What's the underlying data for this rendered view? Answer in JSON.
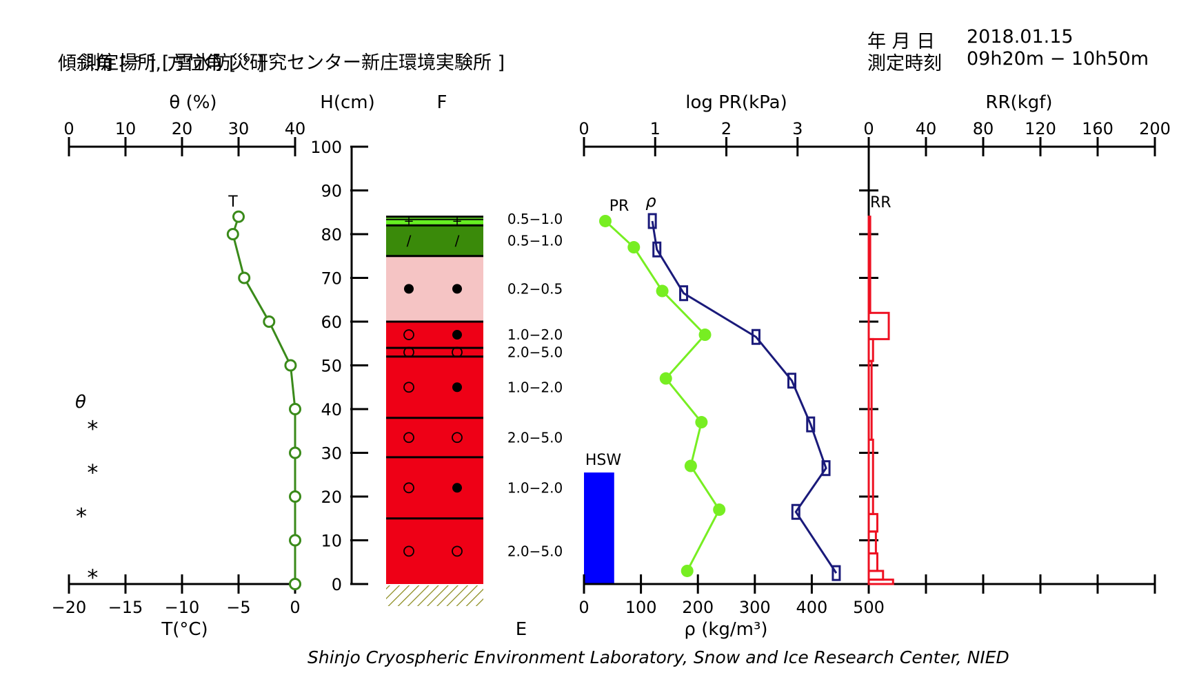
{
  "header": {
    "location_label": "測定場所",
    "location_name": "雪氷防災研究センター新庄環境実験所",
    "angles_label": "傾斜角 [ ° ], 方位角 [ ° ]",
    "date_label": "年 月 日",
    "date_value": "2018.01.15",
    "time_label": "測定時刻",
    "time_value": "09h20m − 10h50m"
  },
  "footer": "Shinjo Cryospheric Environment Laboratory, Snow and Ice Research Center, NIED",
  "chart_data": {
    "type": "snow-pit-profile",
    "height_axis": {
      "label": "H(cm)",
      "range": [
        0,
        100
      ],
      "ticks": [
        0,
        10,
        20,
        30,
        40,
        50,
        60,
        70,
        80,
        90,
        100
      ]
    },
    "labels": {
      "F": "F",
      "E": "E",
      "HSW": "HSW",
      "T_series": "T",
      "PR_series": "PR",
      "rho_series": "ρ",
      "RR_series": "RR",
      "theta_marker": "θ"
    },
    "temperature": {
      "axis_label": "T(°C)",
      "range": [
        -20,
        0
      ],
      "ticks": [
        "−20",
        "−15",
        "−10",
        "−5",
        "0"
      ],
      "color": "#3a8a1a",
      "points": [
        {
          "h": 84,
          "t": -5.0
        },
        {
          "h": 80,
          "t": -5.5
        },
        {
          "h": 70,
          "t": -4.5
        },
        {
          "h": 60,
          "t": -2.3
        },
        {
          "h": 50,
          "t": -0.4
        },
        {
          "h": 40,
          "t": 0.0
        },
        {
          "h": 30,
          "t": 0.0
        },
        {
          "h": 20,
          "t": 0.0
        },
        {
          "h": 10,
          "t": 0.0
        },
        {
          "h": 0,
          "t": 0.0
        }
      ]
    },
    "water_content": {
      "axis_label": "θ (%)",
      "range": [
        0,
        40
      ],
      "ticks": [
        "0",
        "10",
        "20",
        "30",
        "40"
      ],
      "marker": "*",
      "points": [
        {
          "h": 36,
          "v": 2
        },
        {
          "h": 26,
          "v": 2
        },
        {
          "h": 16,
          "v": 0
        },
        {
          "h": 2,
          "v": 2
        }
      ]
    },
    "snow_layers": [
      {
        "bottom": 82,
        "top": 84,
        "color": "#66ee22",
        "grain": "+",
        "grain2": "+",
        "size": "0.5−1.0",
        "size_h": 83.5
      },
      {
        "bottom": 75,
        "top": 82,
        "color": "#3a8a0a",
        "grain": "/",
        "grain2": "/",
        "size": "0.5−1.0",
        "size_h": 78.5
      },
      {
        "bottom": 60,
        "top": 75,
        "color": "#f5c4c4",
        "grain": "●",
        "grain2": "●",
        "size": "0.2−0.5",
        "size_h": 67.5
      },
      {
        "bottom": 54,
        "top": 60,
        "color": "#ee0016",
        "grain": "○",
        "grain2": "●",
        "size": "1.0−2.0",
        "size_h": 57
      },
      {
        "bottom": 52,
        "top": 54,
        "color": "#ee0016",
        "grain": "○",
        "grain2": "○",
        "size": "2.0−5.0",
        "size_h": 53
      },
      {
        "bottom": 38,
        "top": 52,
        "color": "#ee0016",
        "grain": "○",
        "grain2": "●",
        "size": "1.0−2.0",
        "size_h": 45
      },
      {
        "bottom": 29,
        "top": 38,
        "color": "#ee0016",
        "grain": "○",
        "grain2": "○",
        "size": "2.0−5.0",
        "size_h": 33.5
      },
      {
        "bottom": 15,
        "top": 29,
        "color": "#ee0016",
        "grain": "○",
        "grain2": "●",
        "size": "1.0−2.0",
        "size_h": 22
      },
      {
        "bottom": 0,
        "top": 15,
        "color": "#ee0016",
        "grain": "○",
        "grain2": "○",
        "size": "2.0−5.0",
        "size_h": 7.5
      }
    ],
    "hardness": {
      "axis_label": "log PR(kPa)",
      "range": [
        0,
        4
      ],
      "ticks": [
        "0",
        "1",
        "2",
        "3"
      ],
      "color": "#77ee22",
      "points": [
        {
          "h": 83,
          "v": 0.3
        },
        {
          "h": 77,
          "v": 0.7
        },
        {
          "h": 67,
          "v": 1.1
        },
        {
          "h": 57,
          "v": 1.7
        },
        {
          "h": 47,
          "v": 1.15
        },
        {
          "h": 37,
          "v": 1.65
        },
        {
          "h": 27,
          "v": 1.5
        },
        {
          "h": 17,
          "v": 1.9
        },
        {
          "h": 3,
          "v": 1.45
        }
      ]
    },
    "density": {
      "axis_label": "ρ (kg/m³)",
      "range": [
        0,
        500
      ],
      "ticks": [
        "0",
        "100",
        "200",
        "300",
        "400",
        "500"
      ],
      "color": "#1a1a7a",
      "points": [
        {
          "h": 83,
          "v": 120
        },
        {
          "h": 76.5,
          "v": 128
        },
        {
          "h": 66.5,
          "v": 175
        },
        {
          "h": 56.5,
          "v": 302
        },
        {
          "h": 46.5,
          "v": 365
        },
        {
          "h": 36.5,
          "v": 398
        },
        {
          "h": 26.5,
          "v": 425
        },
        {
          "h": 16.5,
          "v": 372
        },
        {
          "h": 2.5,
          "v": 443
        }
      ]
    },
    "hsw": {
      "value": 53,
      "h": 25.5,
      "unit": "kg/m³ scale",
      "color": "#0000ff"
    },
    "ram_resistance": {
      "axis_label": "RR(kgf)",
      "range": [
        0,
        200
      ],
      "ticks": [
        "0",
        "40",
        "80",
        "120",
        "160",
        "200"
      ],
      "color": "#ee1122",
      "segments": [
        {
          "bottom": 62,
          "top": 84,
          "v": 1
        },
        {
          "bottom": 56,
          "top": 62,
          "v": 14
        },
        {
          "bottom": 51,
          "top": 56,
          "v": 3
        },
        {
          "bottom": 33,
          "top": 51,
          "v": 2
        },
        {
          "bottom": 16,
          "top": 33,
          "v": 3
        },
        {
          "bottom": 12,
          "top": 16,
          "v": 6
        },
        {
          "bottom": 7,
          "top": 12,
          "v": 5
        },
        {
          "bottom": 3,
          "top": 7,
          "v": 6
        },
        {
          "bottom": 1,
          "top": 3,
          "v": 10
        },
        {
          "bottom": 0,
          "top": 1,
          "v": 17
        }
      ]
    }
  }
}
